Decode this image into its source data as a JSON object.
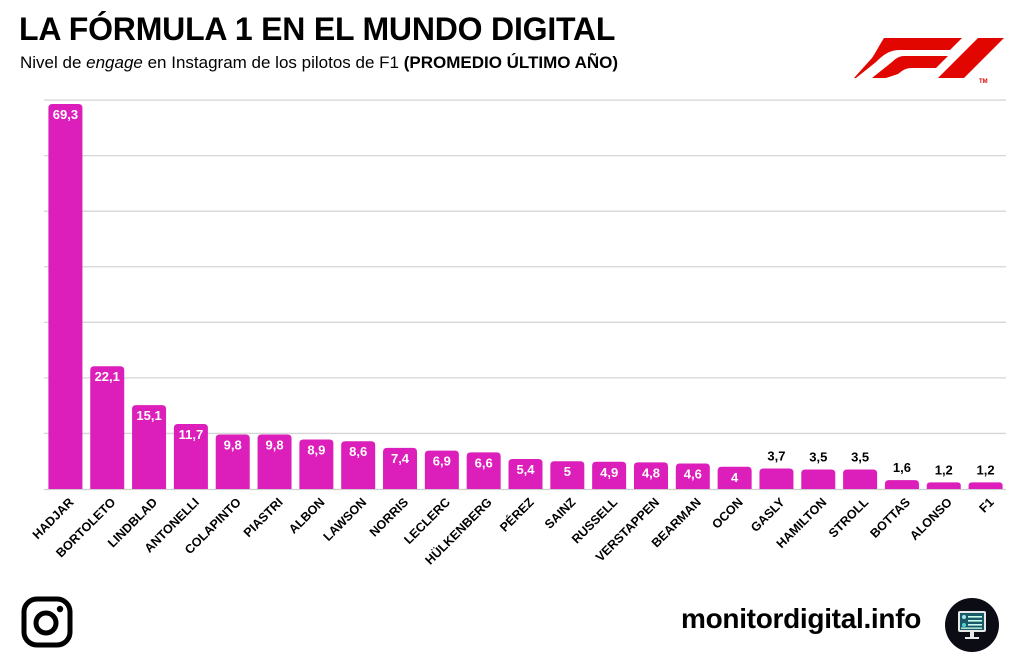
{
  "header": {
    "title": "LA FÓRMULA 1 EN EL MUNDO DIGITAL",
    "subtitle_pre": "Nivel de ",
    "subtitle_em": "engage",
    "subtitle_mid": " en Instagram de los pilotos de F1 ",
    "subtitle_bold": "(PROMEDIO ÚLTIMO AÑO)"
  },
  "logo": {
    "name": "f1-logo",
    "trademark": "TM",
    "color": "#e10600"
  },
  "footer": {
    "site": "monitordigital.info",
    "left_icon": "instagram-icon",
    "right_icon": "monitor-icon"
  },
  "colors": {
    "bar": "#dc1ebb",
    "grid": "#d6d6d6",
    "label_inside": "#ffffff",
    "label_outside": "#000000"
  },
  "chart_data": {
    "type": "bar",
    "title": "LA FÓRMULA 1 EN EL MUNDO DIGITAL",
    "subtitle": "Nivel de engage en Instagram de los pilotos de F1 (PROMEDIO ÚLTIMO AÑO)",
    "xlabel": "",
    "ylabel": "",
    "ylim": [
      0,
      70
    ],
    "grid": true,
    "grid_step": 10,
    "y_tick_labels_shown": false,
    "legend": "none",
    "categories": [
      "HADJAR",
      "BORTOLETO",
      "LINDBLAD",
      "ANTONELLI",
      "COLAPINTO",
      "PIASTRI",
      "ALBON",
      "LAWSON",
      "NORRIS",
      "LECLERC",
      "HÜLKENBERG",
      "PÉREZ",
      "SAINZ",
      "RUSSELL",
      "VERSTAPPEN",
      "BEARMAN",
      "OCON",
      "GASLY",
      "HAMILTON",
      "STROLL",
      "BOTTAS",
      "ALONSO",
      "F1"
    ],
    "values": [
      69.3,
      22.1,
      15.1,
      11.7,
      9.8,
      9.8,
      8.9,
      8.6,
      7.4,
      6.9,
      6.6,
      5.4,
      5,
      4.9,
      4.8,
      4.6,
      4,
      3.7,
      3.5,
      3.5,
      1.6,
      1.2,
      1.2
    ],
    "data_labels": [
      "69,3",
      "22,1",
      "15,1",
      "11,7",
      "9,8",
      "9,8",
      "8,9",
      "8,6",
      "7,4",
      "6,9",
      "6,6",
      "5,4",
      "5",
      "4,9",
      "4,8",
      "4,6",
      "4",
      "3,7",
      "3,5",
      "3,5",
      "1,6",
      "1,2",
      "1,2"
    ],
    "label_inside_min_value": 4
  }
}
